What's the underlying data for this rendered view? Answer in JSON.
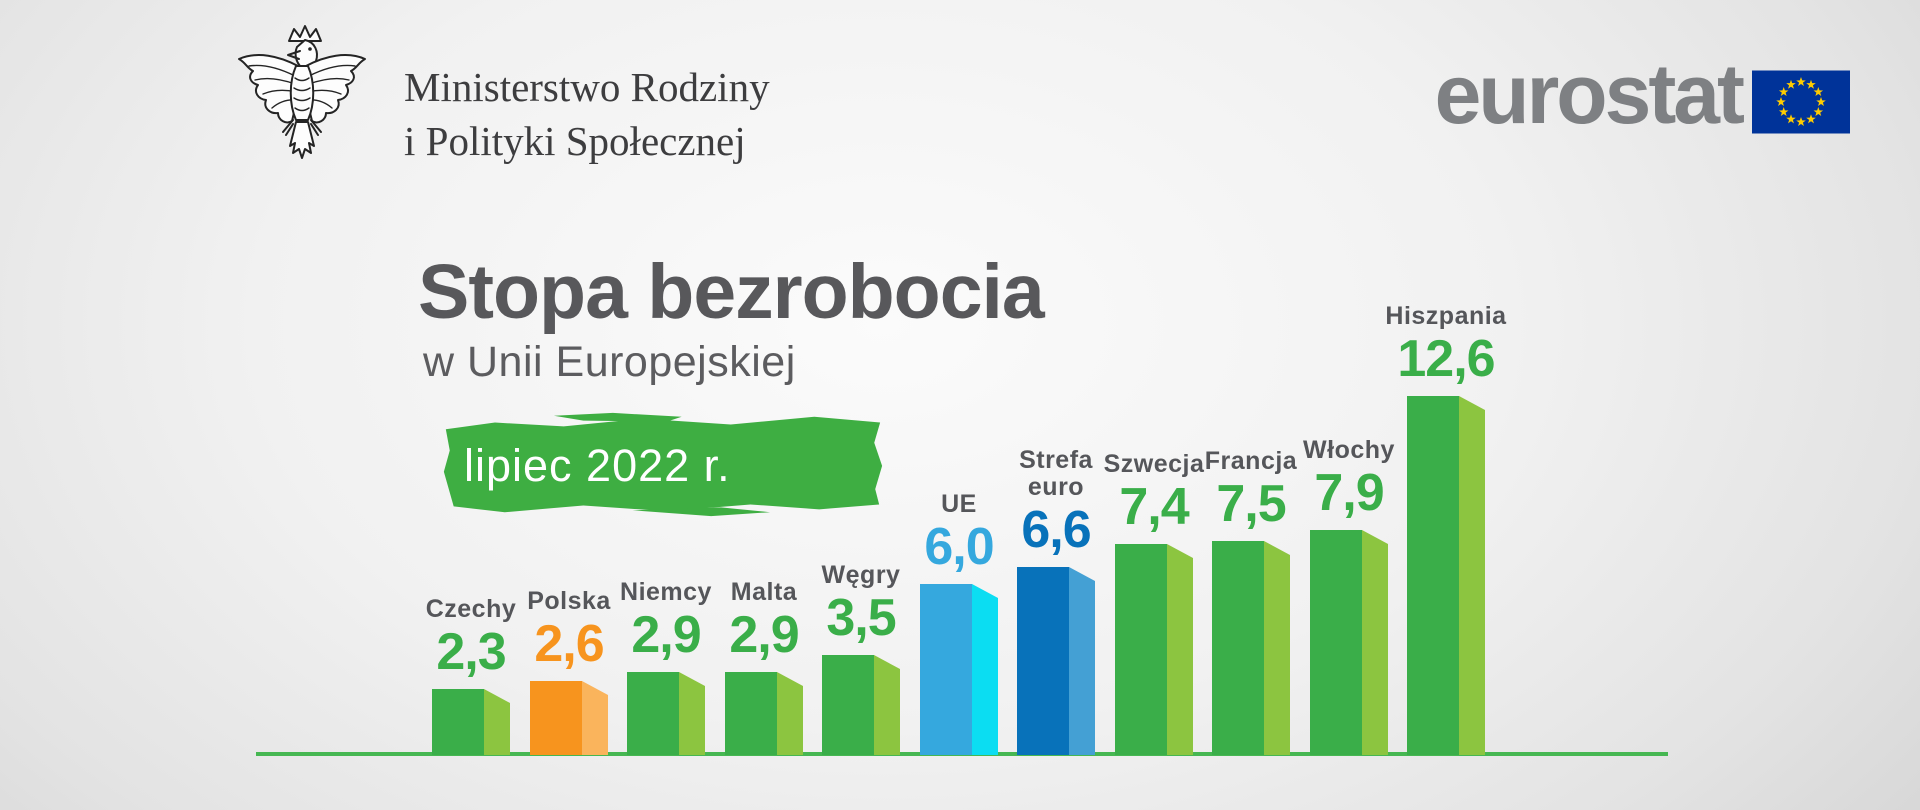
{
  "header": {
    "ministry": {
      "line1": "Ministerstwo Rodziny",
      "line2": "i Polityki Społecznej"
    },
    "eurostat": {
      "wordmark": "eurostat"
    },
    "icons": {
      "eagle": "polish-eagle-coat-of-arms",
      "eu_flag": "eu-flag-12-stars"
    },
    "colors": {
      "eu_flag_blue": "#003399",
      "eu_star_yellow": "#FFCC00",
      "eurostat_gray": "#7E8083"
    }
  },
  "title": {
    "main": "Stopa bezrobocia",
    "subtitle": "w Unii Europejskiej",
    "badge": "lipiec 2022 r."
  },
  "chart_data": {
    "type": "bar",
    "title": "Stopa bezrobocia",
    "subtitle": "w Unii Europejskiej",
    "period": "lipiec 2022 r.",
    "unit": "percent",
    "categories": [
      "Czechy",
      "Polska",
      "Niemcy",
      "Malta",
      "Węgry",
      "UE",
      "Strefa euro",
      "Szwecja",
      "Francja",
      "Włochy",
      "Hiszpania"
    ],
    "values": [
      2.3,
      2.6,
      2.9,
      2.9,
      3.5,
      6.0,
      6.6,
      7.4,
      7.5,
      7.9,
      12.6
    ],
    "value_labels": [
      "2,3",
      "2,6",
      "2,9",
      "2,9",
      "3,5",
      "6,0",
      "6,6",
      "7,4",
      "7,5",
      "7,9",
      "12,6"
    ],
    "display_names": [
      "Czechy",
      "Polska",
      "Niemcy",
      "Malta",
      "Węgry",
      "UE",
      "Strefa\neuro",
      "Szwecja",
      "Francja",
      "Włochy",
      "Hiszpania"
    ],
    "bar_styles": [
      "green",
      "orange",
      "green",
      "green",
      "green",
      "lightblue",
      "blue",
      "green",
      "green",
      "green",
      "green"
    ],
    "palette": {
      "green": {
        "main": "#3AAE49",
        "side": "#8CC540"
      },
      "orange": {
        "main": "#F7941E",
        "side": "#FAB45C"
      },
      "lightblue": {
        "main": "#35A8DE",
        "side": "#0BDDF2"
      },
      "blue": {
        "main": "#0872BA",
        "side": "#44A0D4"
      }
    },
    "label_color": "#55565A",
    "baseline_color": "#46B752",
    "ylim": [
      0,
      13
    ],
    "grid": false,
    "legend": false
  }
}
